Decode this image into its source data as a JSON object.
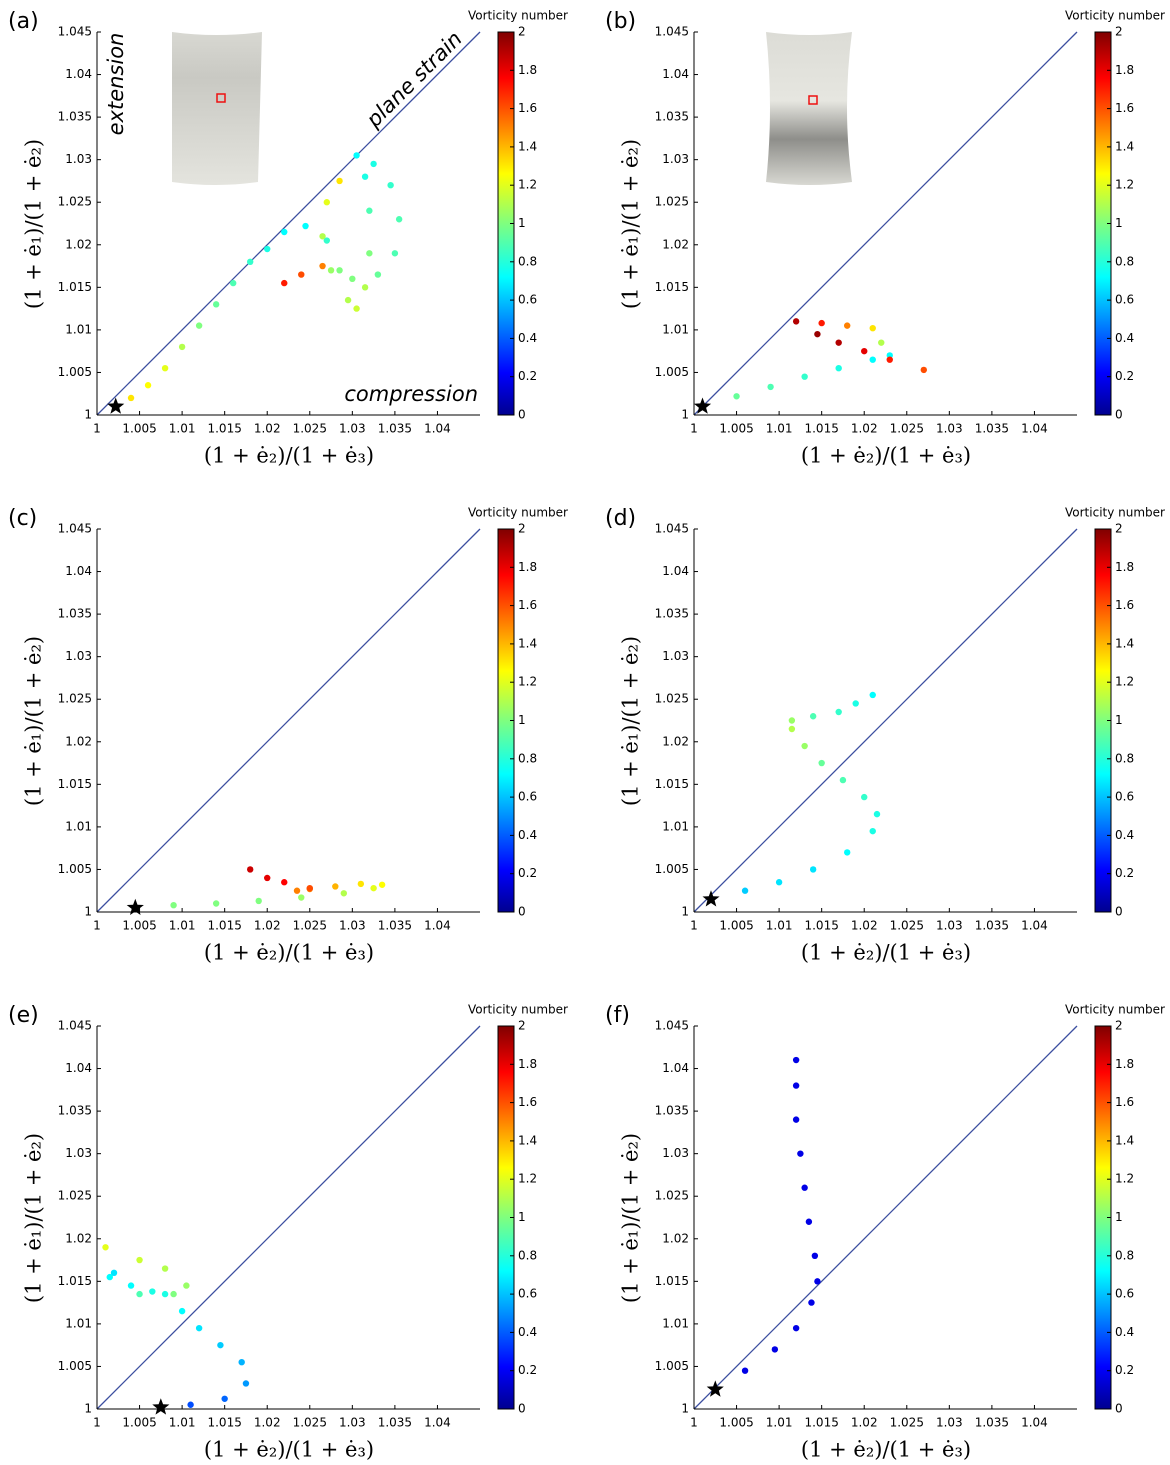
{
  "chart_data": [
    {
      "type": "scatter",
      "panel": "(a)",
      "xlabel": "(1 + ė₂)/(1 + ė₃)",
      "ylabel": "(1 + ė₁)/(1 + ė₂)",
      "xlim": [
        1,
        1.045
      ],
      "ylim": [
        1,
        1.045
      ],
      "xticks": [
        1,
        1.005,
        1.01,
        1.015,
        1.02,
        1.025,
        1.03,
        1.035,
        1.04
      ],
      "yticks": [
        1,
        1.005,
        1.01,
        1.015,
        1.02,
        1.025,
        1.03,
        1.035,
        1.04,
        1.045
      ],
      "colorbar": {
        "label": "Vorticity number",
        "lim": [
          0,
          2
        ],
        "ticks": [
          0,
          0.2,
          0.4,
          0.6,
          0.8,
          1,
          1.2,
          1.4,
          1.6,
          1.8,
          2
        ]
      },
      "annotations": {
        "extension": "extension",
        "plane_strain": "plane strain",
        "compression": "compression"
      },
      "start": {
        "x": 1.0022,
        "y": 1.001
      },
      "x": [
        1.0022,
        1.004,
        1.006,
        1.008,
        1.01,
        1.012,
        1.014,
        1.016,
        1.018,
        1.02,
        1.022,
        1.0245,
        1.027,
        1.0285,
        1.0295,
        1.0305,
        1.0315,
        1.032,
        1.032,
        1.0315,
        1.0305,
        1.0325,
        1.0345,
        1.0355,
        1.035,
        1.033,
        1.03,
        1.0275,
        1.0265,
        1.027,
        1.0285,
        1.0265,
        1.024,
        1.022
      ],
      "y": [
        1.001,
        1.002,
        1.0035,
        1.0055,
        1.008,
        1.0105,
        1.013,
        1.0155,
        1.018,
        1.0195,
        1.0215,
        1.0222,
        1.0205,
        1.017,
        1.0135,
        1.0125,
        1.015,
        1.019,
        1.024,
        1.028,
        1.0305,
        1.0295,
        1.027,
        1.023,
        1.019,
        1.0165,
        1.016,
        1.017,
        1.021,
        1.025,
        1.0275,
        1.0175,
        1.0165,
        1.0155
      ],
      "vorticity": [
        1.3,
        1.3,
        1.25,
        1.2,
        1.1,
        1.0,
        0.95,
        0.9,
        0.85,
        0.8,
        0.75,
        0.75,
        0.85,
        1.0,
        1.1,
        1.15,
        1.1,
        1.0,
        0.9,
        0.8,
        0.75,
        0.8,
        0.85,
        0.9,
        0.9,
        0.95,
        1.0,
        1.05,
        1.1,
        1.2,
        1.3,
        1.5,
        1.6,
        1.7
      ]
    },
    {
      "type": "scatter",
      "panel": "(b)",
      "xlabel": "(1 + ė₂)/(1 + ė₃)",
      "ylabel": "(1 + ė₁)/(1 + ė₂)",
      "xlim": [
        1,
        1.045
      ],
      "ylim": [
        1,
        1.045
      ],
      "xticks": [
        1,
        1.005,
        1.01,
        1.015,
        1.02,
        1.025,
        1.03,
        1.035,
        1.04
      ],
      "yticks": [
        1,
        1.005,
        1.01,
        1.015,
        1.02,
        1.025,
        1.03,
        1.035,
        1.04,
        1.045
      ],
      "colorbar": {
        "label": "Vorticity number",
        "lim": [
          0,
          2
        ],
        "ticks": [
          0,
          0.2,
          0.4,
          0.6,
          0.8,
          1,
          1.2,
          1.4,
          1.6,
          1.8,
          2
        ]
      },
      "start": {
        "x": 1.001,
        "y": 1.001
      },
      "x": [
        1.001,
        1.005,
        1.009,
        1.013,
        1.017,
        1.021,
        1.023,
        1.022,
        1.021,
        1.018,
        1.015,
        1.012,
        1.0145,
        1.017,
        1.02,
        1.023,
        1.027
      ],
      "y": [
        1.001,
        1.0022,
        1.0033,
        1.0045,
        1.0055,
        1.0065,
        1.007,
        1.0085,
        1.0102,
        1.0105,
        1.0108,
        1.011,
        1.0095,
        1.0085,
        1.0075,
        1.0065,
        1.0053
      ],
      "vorticity": [
        0.95,
        0.95,
        0.9,
        0.85,
        0.8,
        0.75,
        0.75,
        1.1,
        1.3,
        1.5,
        1.7,
        1.9,
        1.95,
        1.9,
        1.8,
        1.7,
        1.6
      ]
    },
    {
      "type": "scatter",
      "panel": "(c)",
      "xlabel": "(1 + ė₂)/(1 + ė₃)",
      "ylabel": "(1 + ė₁)/(1 + ė₂)",
      "xlim": [
        1,
        1.045
      ],
      "ylim": [
        1,
        1.045
      ],
      "xticks": [
        1,
        1.005,
        1.01,
        1.015,
        1.02,
        1.025,
        1.03,
        1.035,
        1.04
      ],
      "yticks": [
        1,
        1.005,
        1.01,
        1.015,
        1.02,
        1.025,
        1.03,
        1.035,
        1.04,
        1.045
      ],
      "colorbar": {
        "label": "Vorticity number",
        "lim": [
          0,
          2
        ],
        "ticks": [
          0,
          0.2,
          0.4,
          0.6,
          0.8,
          1,
          1.2,
          1.4,
          1.6,
          1.8,
          2
        ]
      },
      "start": {
        "x": 1.0045,
        "y": 1.0005
      },
      "x": [
        1.0045,
        1.009,
        1.014,
        1.019,
        1.024,
        1.029,
        1.0325,
        1.0335,
        1.031,
        1.028,
        1.025,
        1.0235,
        1.025,
        1.022,
        1.02,
        1.018
      ],
      "y": [
        1.0005,
        1.0008,
        1.001,
        1.0013,
        1.0017,
        1.0022,
        1.0028,
        1.0032,
        1.0033,
        1.003,
        1.0027,
        1.0025,
        1.0028,
        1.0035,
        1.004,
        1.005
      ],
      "vorticity": [
        1.0,
        1.0,
        1.0,
        1.0,
        1.05,
        1.1,
        1.2,
        1.25,
        1.3,
        1.4,
        1.5,
        1.5,
        1.6,
        1.75,
        1.8,
        1.85
      ]
    },
    {
      "type": "scatter",
      "panel": "(d)",
      "xlabel": "(1 + ė₂)/(1 + ė₃)",
      "ylabel": "(1 + ė₁)/(1 + ė₂)",
      "xlim": [
        1,
        1.045
      ],
      "ylim": [
        1,
        1.045
      ],
      "xticks": [
        1,
        1.005,
        1.01,
        1.015,
        1.02,
        1.025,
        1.03,
        1.035,
        1.04
      ],
      "yticks": [
        1,
        1.005,
        1.01,
        1.015,
        1.02,
        1.025,
        1.03,
        1.035,
        1.04,
        1.045
      ],
      "colorbar": {
        "label": "Vorticity number",
        "lim": [
          0,
          2
        ],
        "ticks": [
          0,
          0.2,
          0.4,
          0.6,
          0.8,
          1,
          1.2,
          1.4,
          1.6,
          1.8,
          2
        ]
      },
      "start": {
        "x": 1.002,
        "y": 1.0015
      },
      "x": [
        1.002,
        1.006,
        1.01,
        1.014,
        1.018,
        1.021,
        1.0215,
        1.02,
        1.0175,
        1.015,
        1.013,
        1.0115,
        1.0115,
        1.014,
        1.017,
        1.019,
        1.021
      ],
      "y": [
        1.0015,
        1.0025,
        1.0035,
        1.005,
        1.007,
        1.0095,
        1.0115,
        1.0135,
        1.0155,
        1.0175,
        1.0195,
        1.0215,
        1.0225,
        1.023,
        1.0235,
        1.0245,
        1.0255
      ],
      "vorticity": [
        0.65,
        0.65,
        0.7,
        0.7,
        0.75,
        0.8,
        0.8,
        0.85,
        0.9,
        0.95,
        1.05,
        1.1,
        1.05,
        0.9,
        0.85,
        0.8,
        0.75
      ]
    },
    {
      "type": "scatter",
      "panel": "(e)",
      "xlabel": "(1 + ė₂)/(1 + ė₃)",
      "ylabel": "(1 + ė₁)/(1 + ė₂)",
      "xlim": [
        1,
        1.045
      ],
      "ylim": [
        1,
        1.045
      ],
      "xticks": [
        1,
        1.005,
        1.01,
        1.015,
        1.02,
        1.025,
        1.03,
        1.035,
        1.04
      ],
      "yticks": [
        1,
        1.005,
        1.01,
        1.015,
        1.02,
        1.025,
        1.03,
        1.035,
        1.04,
        1.045
      ],
      "colorbar": {
        "label": "Vorticity number",
        "lim": [
          0,
          2
        ],
        "ticks": [
          0,
          0.2,
          0.4,
          0.6,
          0.8,
          1,
          1.2,
          1.4,
          1.6,
          1.8,
          2
        ]
      },
      "start": {
        "x": 1.0075,
        "y": 1.0002
      },
      "x": [
        1.0075,
        1.011,
        1.015,
        1.0175,
        1.017,
        1.0145,
        1.012,
        1.01,
        1.008,
        1.0065,
        1.004,
        1.002,
        1.0015,
        1.005,
        1.009,
        1.0105,
        1.008,
        1.005,
        1.001
      ],
      "y": [
        1.0002,
        1.0005,
        1.0012,
        1.003,
        1.0055,
        1.0075,
        1.0095,
        1.0115,
        1.0135,
        1.0138,
        1.0145,
        1.016,
        1.0155,
        1.0135,
        1.0135,
        1.0145,
        1.0165,
        1.0175,
        1.019
      ],
      "vorticity": [
        0.35,
        0.4,
        0.45,
        0.55,
        0.6,
        0.65,
        0.7,
        0.75,
        0.8,
        0.8,
        0.75,
        0.7,
        0.75,
        0.9,
        1.0,
        1.05,
        1.1,
        1.15,
        1.2
      ]
    },
    {
      "type": "scatter",
      "panel": "(f)",
      "xlabel": "(1 + ė₂)/(1 + ė₃)",
      "ylabel": "(1 + ė₁)/(1 + ė₂)",
      "xlim": [
        1,
        1.045
      ],
      "ylim": [
        1,
        1.045
      ],
      "xticks": [
        1,
        1.005,
        1.01,
        1.015,
        1.02,
        1.025,
        1.03,
        1.035,
        1.04
      ],
      "yticks": [
        1,
        1.005,
        1.01,
        1.015,
        1.02,
        1.025,
        1.03,
        1.035,
        1.04,
        1.045
      ],
      "colorbar": {
        "label": "Vorticity number",
        "lim": [
          0,
          2
        ],
        "ticks": [
          0,
          0.2,
          0.4,
          0.6,
          0.8,
          1,
          1.2,
          1.4,
          1.6,
          1.8,
          2
        ]
      },
      "start": {
        "x": 1.0025,
        "y": 1.0023
      },
      "x": [
        1.0025,
        1.006,
        1.0095,
        1.012,
        1.0138,
        1.0145,
        1.0142,
        1.0135,
        1.013,
        1.0125,
        1.012,
        1.012,
        1.012
      ],
      "y": [
        1.0023,
        1.0045,
        1.007,
        1.0095,
        1.0125,
        1.015,
        1.018,
        1.022,
        1.026,
        1.03,
        1.034,
        1.038,
        1.041
      ],
      "vorticity": [
        0.2,
        0.2,
        0.2,
        0.2,
        0.2,
        0.2,
        0.2,
        0.2,
        0.2,
        0.2,
        0.2,
        0.2,
        0.2
      ]
    }
  ]
}
